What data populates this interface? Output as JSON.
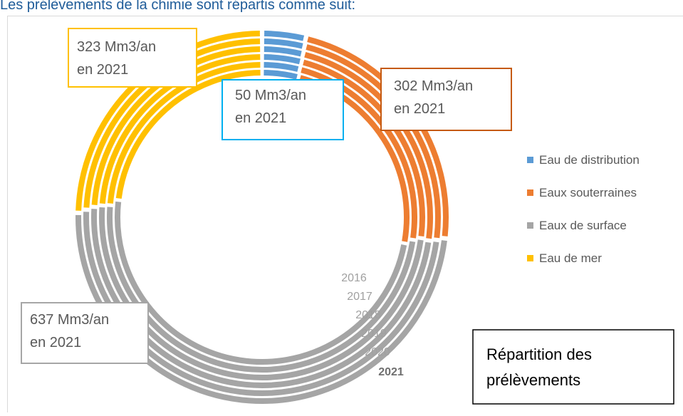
{
  "header": {
    "title": "Les prélèvements de la chimie sont répartis comme suit:"
  },
  "chart_data": {
    "type": "pie",
    "categories": [
      "2016",
      "2017",
      "2018",
      "2019",
      "2020",
      "2021"
    ],
    "series": [
      {
        "name": "Eau de distribution",
        "color": "#5B9BD5",
        "values": [
          58,
          56,
          55,
          53,
          51,
          50
        ]
      },
      {
        "name": "Eaux souterraines",
        "color": "#ED7D31",
        "values": [
          340,
          330,
          320,
          315,
          305,
          302
        ]
      },
      {
        "name": "Eaux de surface",
        "color": "#A5A5A5",
        "values": [
          700,
          690,
          680,
          660,
          640,
          637
        ]
      },
      {
        "name": "Eau de mer",
        "color": "#FFC000",
        "values": [
          330,
          335,
          330,
          325,
          320,
          323
        ]
      }
    ],
    "annotations": [
      {
        "lines": [
          "323 Mm3/an",
          "en 2021"
        ],
        "color": "#FFC000"
      },
      {
        "lines": [
          "50 Mm3/an",
          "en 2021"
        ],
        "color": "#00B0F0"
      },
      {
        "lines": [
          "302 Mm3/an",
          "en 2021"
        ],
        "color": "#C55A11"
      },
      {
        "lines": [
          "637 Mm3/an",
          "en 2021"
        ],
        "color": "#A6A6A6"
      }
    ],
    "title": [
      "Répartition des",
      "prélèvements"
    ],
    "legend": "right"
  }
}
